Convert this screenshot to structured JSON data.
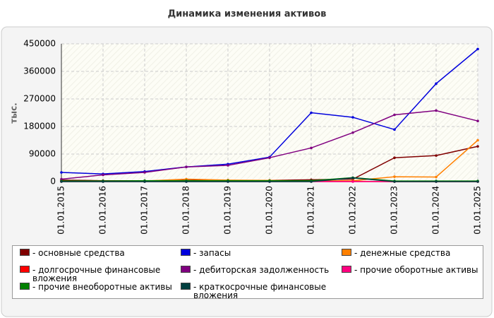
{
  "chart_data": {
    "type": "line",
    "title": "Динамика изменения активов",
    "y_label": "тыс.",
    "categories": [
      "01.01.2015",
      "01.01.2016",
      "01.01.2017",
      "01.01.2018",
      "01.01.2019",
      "01.01.2020",
      "01.01.2021",
      "01.01.2022",
      "01.01.2023",
      "01.01.2024",
      "01.01.2025"
    ],
    "ylim": [
      0,
      450000
    ],
    "yticks": [
      0,
      90000,
      180000,
      270000,
      360000,
      450000
    ],
    "grid": true,
    "series": [
      {
        "name": "основные средства",
        "color": "#800000",
        "values": [
          5000,
          3000,
          3000,
          4000,
          4000,
          4000,
          6000,
          8000,
          78000,
          85000,
          115000
        ]
      },
      {
        "name": "запасы",
        "color": "#0000dd",
        "values": [
          30000,
          25000,
          33000,
          48000,
          57000,
          80000,
          225000,
          210000,
          170000,
          320000,
          433000
        ]
      },
      {
        "name": "денежные средства",
        "color": "#ff8000",
        "values": [
          2000,
          1000,
          2000,
          8000,
          5000,
          4000,
          2000,
          3000,
          16000,
          15000,
          135000
        ]
      },
      {
        "name": "долгосрочные финансовые вложения",
        "color": "#ff0000",
        "values": [
          1000,
          1000,
          1000,
          1000,
          1000,
          1000,
          1000,
          1000,
          0,
          0,
          0
        ]
      },
      {
        "name": "дебиторская задолженность",
        "color": "#800080",
        "values": [
          8000,
          22000,
          30000,
          48000,
          53000,
          78000,
          110000,
          160000,
          218000,
          232000,
          198000
        ]
      },
      {
        "name": "прочие оборотные активы",
        "color": "#ff0080",
        "values": [
          0,
          0,
          0,
          0,
          0,
          0,
          0,
          0,
          0,
          0,
          0
        ]
      },
      {
        "name": "прочие внеоборотные активы",
        "color": "#008000",
        "values": [
          2000,
          2000,
          3000,
          3000,
          3000,
          3000,
          3000,
          13000,
          2000,
          2000,
          2000
        ]
      },
      {
        "name": "краткосрочные финансовые вложения",
        "color": "#004040",
        "values": [
          0,
          0,
          0,
          0,
          0,
          0,
          0,
          12000,
          0,
          0,
          0
        ]
      }
    ]
  }
}
